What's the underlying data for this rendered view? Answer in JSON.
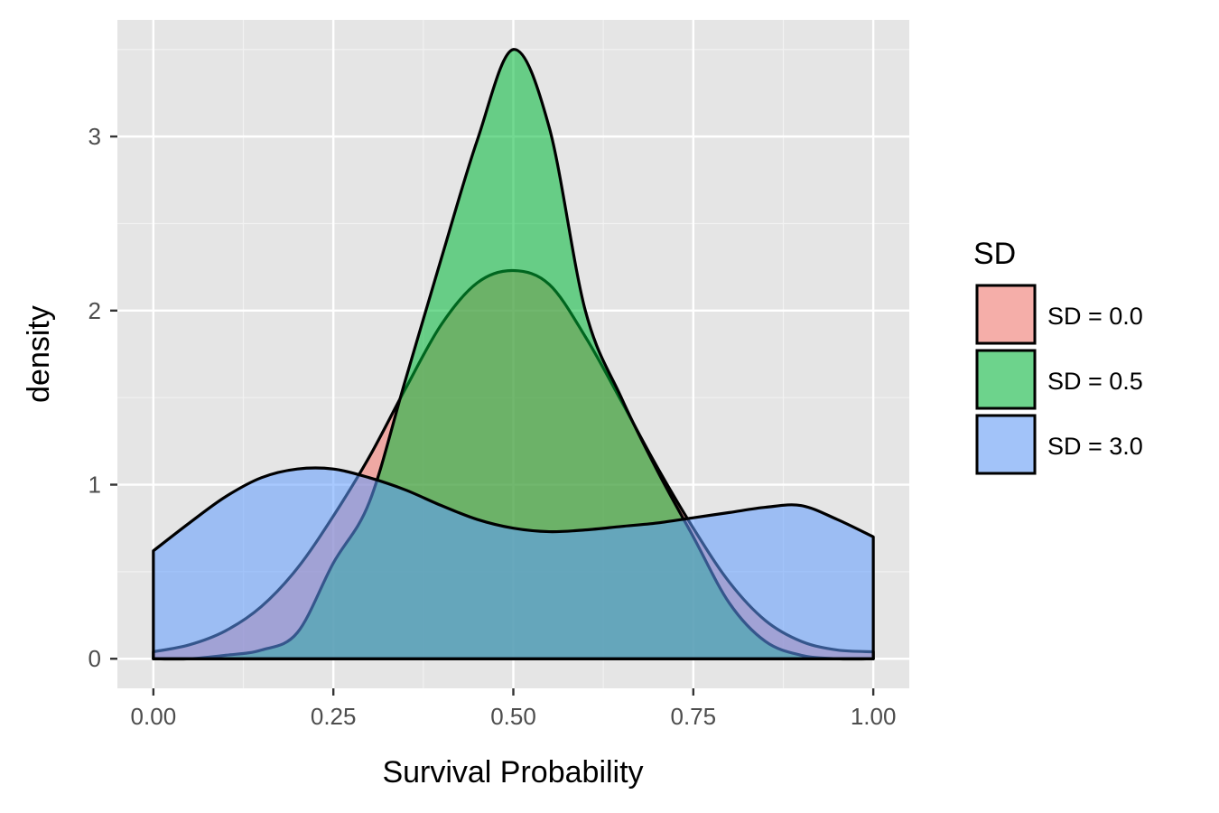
{
  "chart_data": {
    "type": "area",
    "xlabel": "Survival Probability",
    "ylabel": "density",
    "xlim": [
      -0.05,
      1.05
    ],
    "ylim": [
      -0.17,
      3.67
    ],
    "x_ticks": [
      0.0,
      0.25,
      0.5,
      0.75,
      1.0
    ],
    "x_tick_labels": [
      "0.00",
      "0.25",
      "0.50",
      "0.75",
      "1.00"
    ],
    "y_ticks": [
      0,
      1,
      2,
      3
    ],
    "y_tick_labels": [
      "0",
      "1",
      "2",
      "3"
    ],
    "grid": true,
    "legend": {
      "title": "SD",
      "position": "right"
    },
    "series": [
      {
        "name": "SD = 0.0",
        "color": "#F8766D",
        "x": [
          0.0,
          0.05,
          0.1,
          0.15,
          0.2,
          0.25,
          0.3,
          0.35,
          0.4,
          0.45,
          0.5,
          0.55,
          0.6,
          0.65,
          0.7,
          0.75,
          0.8,
          0.85,
          0.9,
          0.95,
          1.0
        ],
        "y": [
          0.04,
          0.08,
          0.16,
          0.3,
          0.52,
          0.82,
          1.16,
          1.55,
          1.92,
          2.16,
          2.23,
          2.15,
          1.85,
          1.48,
          1.1,
          0.75,
          0.44,
          0.22,
          0.1,
          0.05,
          0.04
        ]
      },
      {
        "name": "SD = 0.5",
        "color": "#00BA38",
        "x": [
          0.0,
          0.05,
          0.1,
          0.15,
          0.2,
          0.25,
          0.3,
          0.35,
          0.4,
          0.45,
          0.5,
          0.55,
          0.6,
          0.65,
          0.7,
          0.75,
          0.8,
          0.85,
          0.9,
          0.95,
          1.0
        ],
        "y": [
          0.0,
          0.0,
          0.02,
          0.05,
          0.15,
          0.55,
          0.9,
          1.6,
          2.3,
          2.98,
          3.5,
          3.05,
          2.0,
          1.5,
          1.08,
          0.7,
          0.32,
          0.1,
          0.02,
          0.0,
          0.0
        ]
      },
      {
        "name": "SD = 3.0",
        "color": "#619CFF",
        "x": [
          0.0,
          0.05,
          0.1,
          0.15,
          0.2,
          0.25,
          0.3,
          0.35,
          0.4,
          0.45,
          0.5,
          0.55,
          0.6,
          0.65,
          0.7,
          0.75,
          0.8,
          0.85,
          0.9,
          0.95,
          1.0
        ],
        "y": [
          0.62,
          0.78,
          0.93,
          1.04,
          1.09,
          1.09,
          1.04,
          0.97,
          0.88,
          0.8,
          0.75,
          0.73,
          0.74,
          0.76,
          0.78,
          0.81,
          0.84,
          0.87,
          0.88,
          0.8,
          0.7
        ]
      }
    ]
  }
}
